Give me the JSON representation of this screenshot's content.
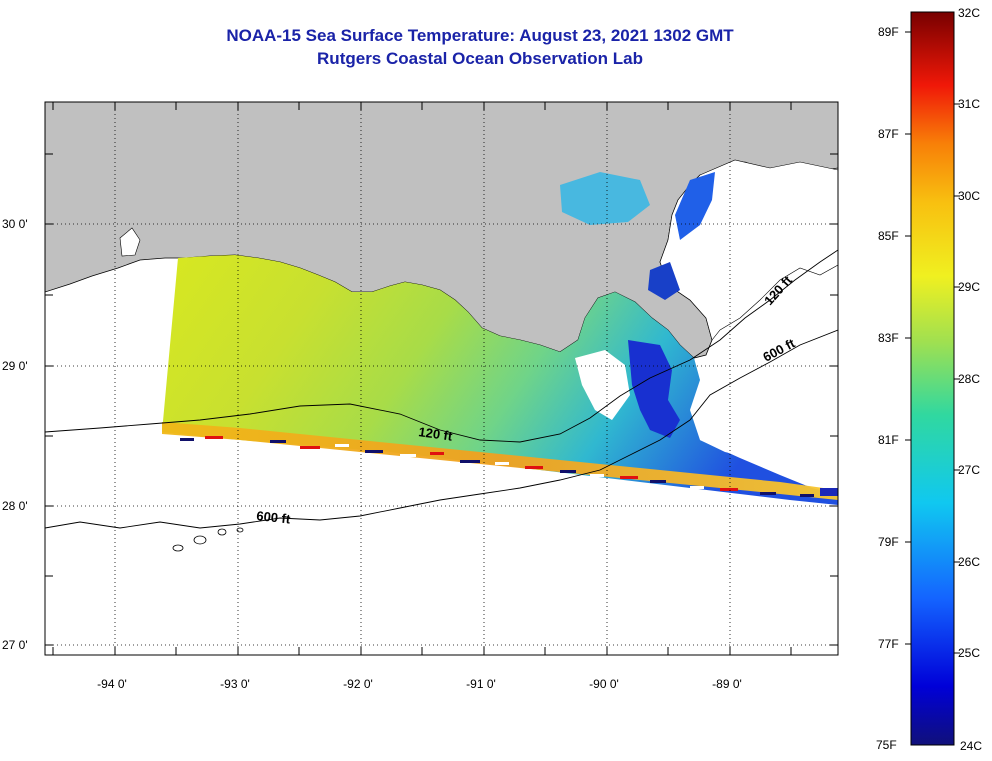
{
  "title": {
    "line1": "NOAA-15 Sea Surface Temperature:  August 23, 2021 1302 GMT",
    "line2": "Rutgers Coastal Ocean Observation Lab"
  },
  "axes": {
    "lon_labels": [
      "-94 0'",
      "-93 0'",
      "-92 0'",
      "-91 0'",
      "-90 0'",
      "-89 0'"
    ],
    "lat_labels": [
      "30 0'",
      "29 0'",
      "28 0'",
      "27 0'"
    ]
  },
  "contours": {
    "label_120_west": "120 ft",
    "label_600_west": "600 ft",
    "label_120_east": "120 ft",
    "label_600_east": "600 ft"
  },
  "colorbar": {
    "celsius": [
      "32C",
      "31C",
      "30C",
      "29C",
      "28C",
      "27C",
      "26C",
      "25C",
      "24C"
    ],
    "fahrenheit": [
      "89F",
      "87F",
      "85F",
      "83F",
      "81F",
      "79F",
      "77F",
      "75F"
    ]
  },
  "colors": {
    "title": "#1a23a8",
    "land": "#c0c0c0"
  }
}
